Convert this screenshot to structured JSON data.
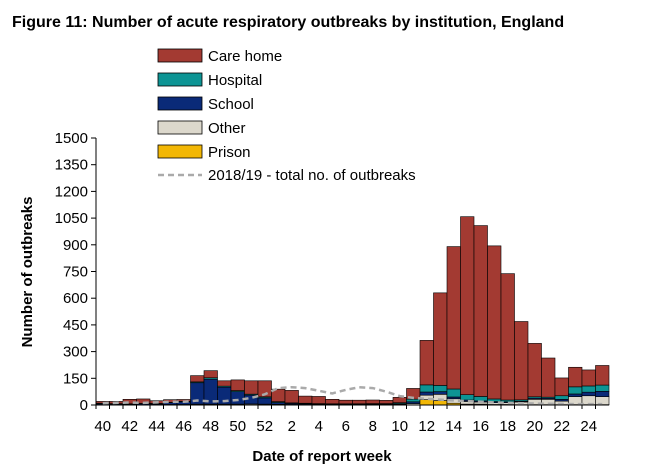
{
  "chart_data": {
    "type": "bar",
    "stacked": true,
    "title": "Figure 11: Number of acute respiratory outbreaks by institution, England",
    "xlabel": "Date of report week",
    "ylabel": "Number of outbreaks",
    "ylim": [
      0,
      1500
    ],
    "yticks": [
      "0",
      "150",
      "300",
      "450",
      "600",
      "750",
      "900",
      "1050",
      "1200",
      "1350",
      "1500"
    ],
    "categories": [
      40,
      41,
      42,
      43,
      44,
      45,
      46,
      47,
      48,
      49,
      50,
      51,
      52,
      1,
      2,
      3,
      4,
      5,
      6,
      7,
      8,
      9,
      10,
      11,
      12,
      13,
      14,
      15,
      16,
      17,
      18,
      19,
      20,
      21,
      22,
      23,
      24,
      25
    ],
    "xtick_labels": [
      "40",
      "42",
      "44",
      "46",
      "48",
      "50",
      "52",
      "2",
      "4",
      "6",
      "8",
      "10",
      "12",
      "14",
      "16",
      "18",
      "20",
      "22",
      "24"
    ],
    "xtick_every": 2,
    "series": [
      {
        "name": "Prison",
        "color": "#f2b705",
        "values": [
          0,
          0,
          0,
          0,
          0,
          0,
          0,
          0,
          0,
          0,
          0,
          0,
          0,
          0,
          0,
          0,
          0,
          0,
          0,
          0,
          0,
          0,
          0,
          0,
          30,
          25,
          10,
          5,
          5,
          3,
          3,
          2,
          2,
          2,
          2,
          2,
          2,
          2
        ]
      },
      {
        "name": "Other",
        "color": "#dcd8cc",
        "values": [
          3,
          2,
          2,
          2,
          3,
          3,
          3,
          5,
          5,
          5,
          5,
          6,
          5,
          4,
          3,
          3,
          3,
          3,
          3,
          3,
          3,
          3,
          4,
          8,
          25,
          35,
          25,
          15,
          12,
          10,
          10,
          15,
          30,
          30,
          20,
          45,
          50,
          45
        ]
      },
      {
        "name": "School",
        "color": "#0a2a78",
        "values": [
          5,
          4,
          3,
          5,
          4,
          10,
          15,
          120,
          140,
          95,
          70,
          50,
          35,
          10,
          6,
          4,
          3,
          2,
          2,
          2,
          2,
          2,
          4,
          10,
          18,
          15,
          10,
          8,
          6,
          6,
          5,
          4,
          6,
          6,
          10,
          15,
          20,
          30
        ]
      },
      {
        "name": "Hospital",
        "color": "#0d9494",
        "values": [
          2,
          2,
          2,
          2,
          2,
          2,
          3,
          5,
          8,
          6,
          6,
          5,
          6,
          5,
          3,
          3,
          2,
          2,
          2,
          2,
          3,
          3,
          5,
          15,
          40,
          35,
          45,
          30,
          25,
          15,
          10,
          8,
          8,
          6,
          20,
          40,
          35,
          35
        ]
      },
      {
        "name": "Care home",
        "color": "#a33a32",
        "values": [
          10,
          12,
          25,
          25,
          15,
          15,
          10,
          35,
          40,
          30,
          60,
          75,
          90,
          70,
          70,
          40,
          40,
          25,
          20,
          20,
          20,
          18,
          30,
          60,
          250,
          520,
          800,
          1000,
          960,
          860,
          710,
          440,
          300,
          220,
          100,
          110,
          90,
          110
        ]
      }
    ],
    "reference_line": {
      "name": "2018/19 - total no. of outbreaks",
      "color": "#aaaaaa",
      "values": [
        10,
        12,
        14,
        12,
        15,
        18,
        18,
        25,
        20,
        22,
        28,
        40,
        60,
        95,
        100,
        95,
        80,
        65,
        85,
        100,
        95,
        75,
        50,
        40,
        35,
        30,
        25,
        22,
        18,
        15,
        12,
        10,
        8,
        7,
        6,
        5,
        5,
        5
      ]
    },
    "legend_order": [
      "Care home",
      "Hospital",
      "School",
      "Other",
      "Prison"
    ],
    "legend_position": "top-left"
  }
}
